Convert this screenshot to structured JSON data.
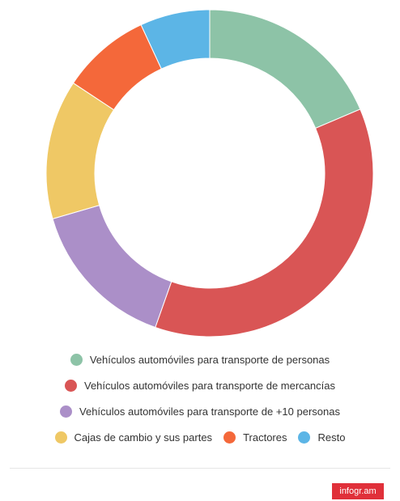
{
  "chart_data": {
    "type": "donut",
    "categories": [
      "Vehículos automóviles para transporte de personas",
      "Vehículos automóviles para transporte de mercancías",
      "Vehículos automóviles para transporte de +10 personas",
      "Cajas de cambio y sus partes",
      "Tractores",
      "Resto"
    ],
    "values": [
      18.6,
      36.8,
      15.1,
      13.8,
      8.8,
      6.9
    ],
    "colors": [
      "#8dc3a7",
      "#d95555",
      "#ab8fc8",
      "#efc865",
      "#f4683a",
      "#5cb5e6"
    ],
    "legend": "bottom"
  },
  "footer": {
    "badge": "infogr.am"
  }
}
